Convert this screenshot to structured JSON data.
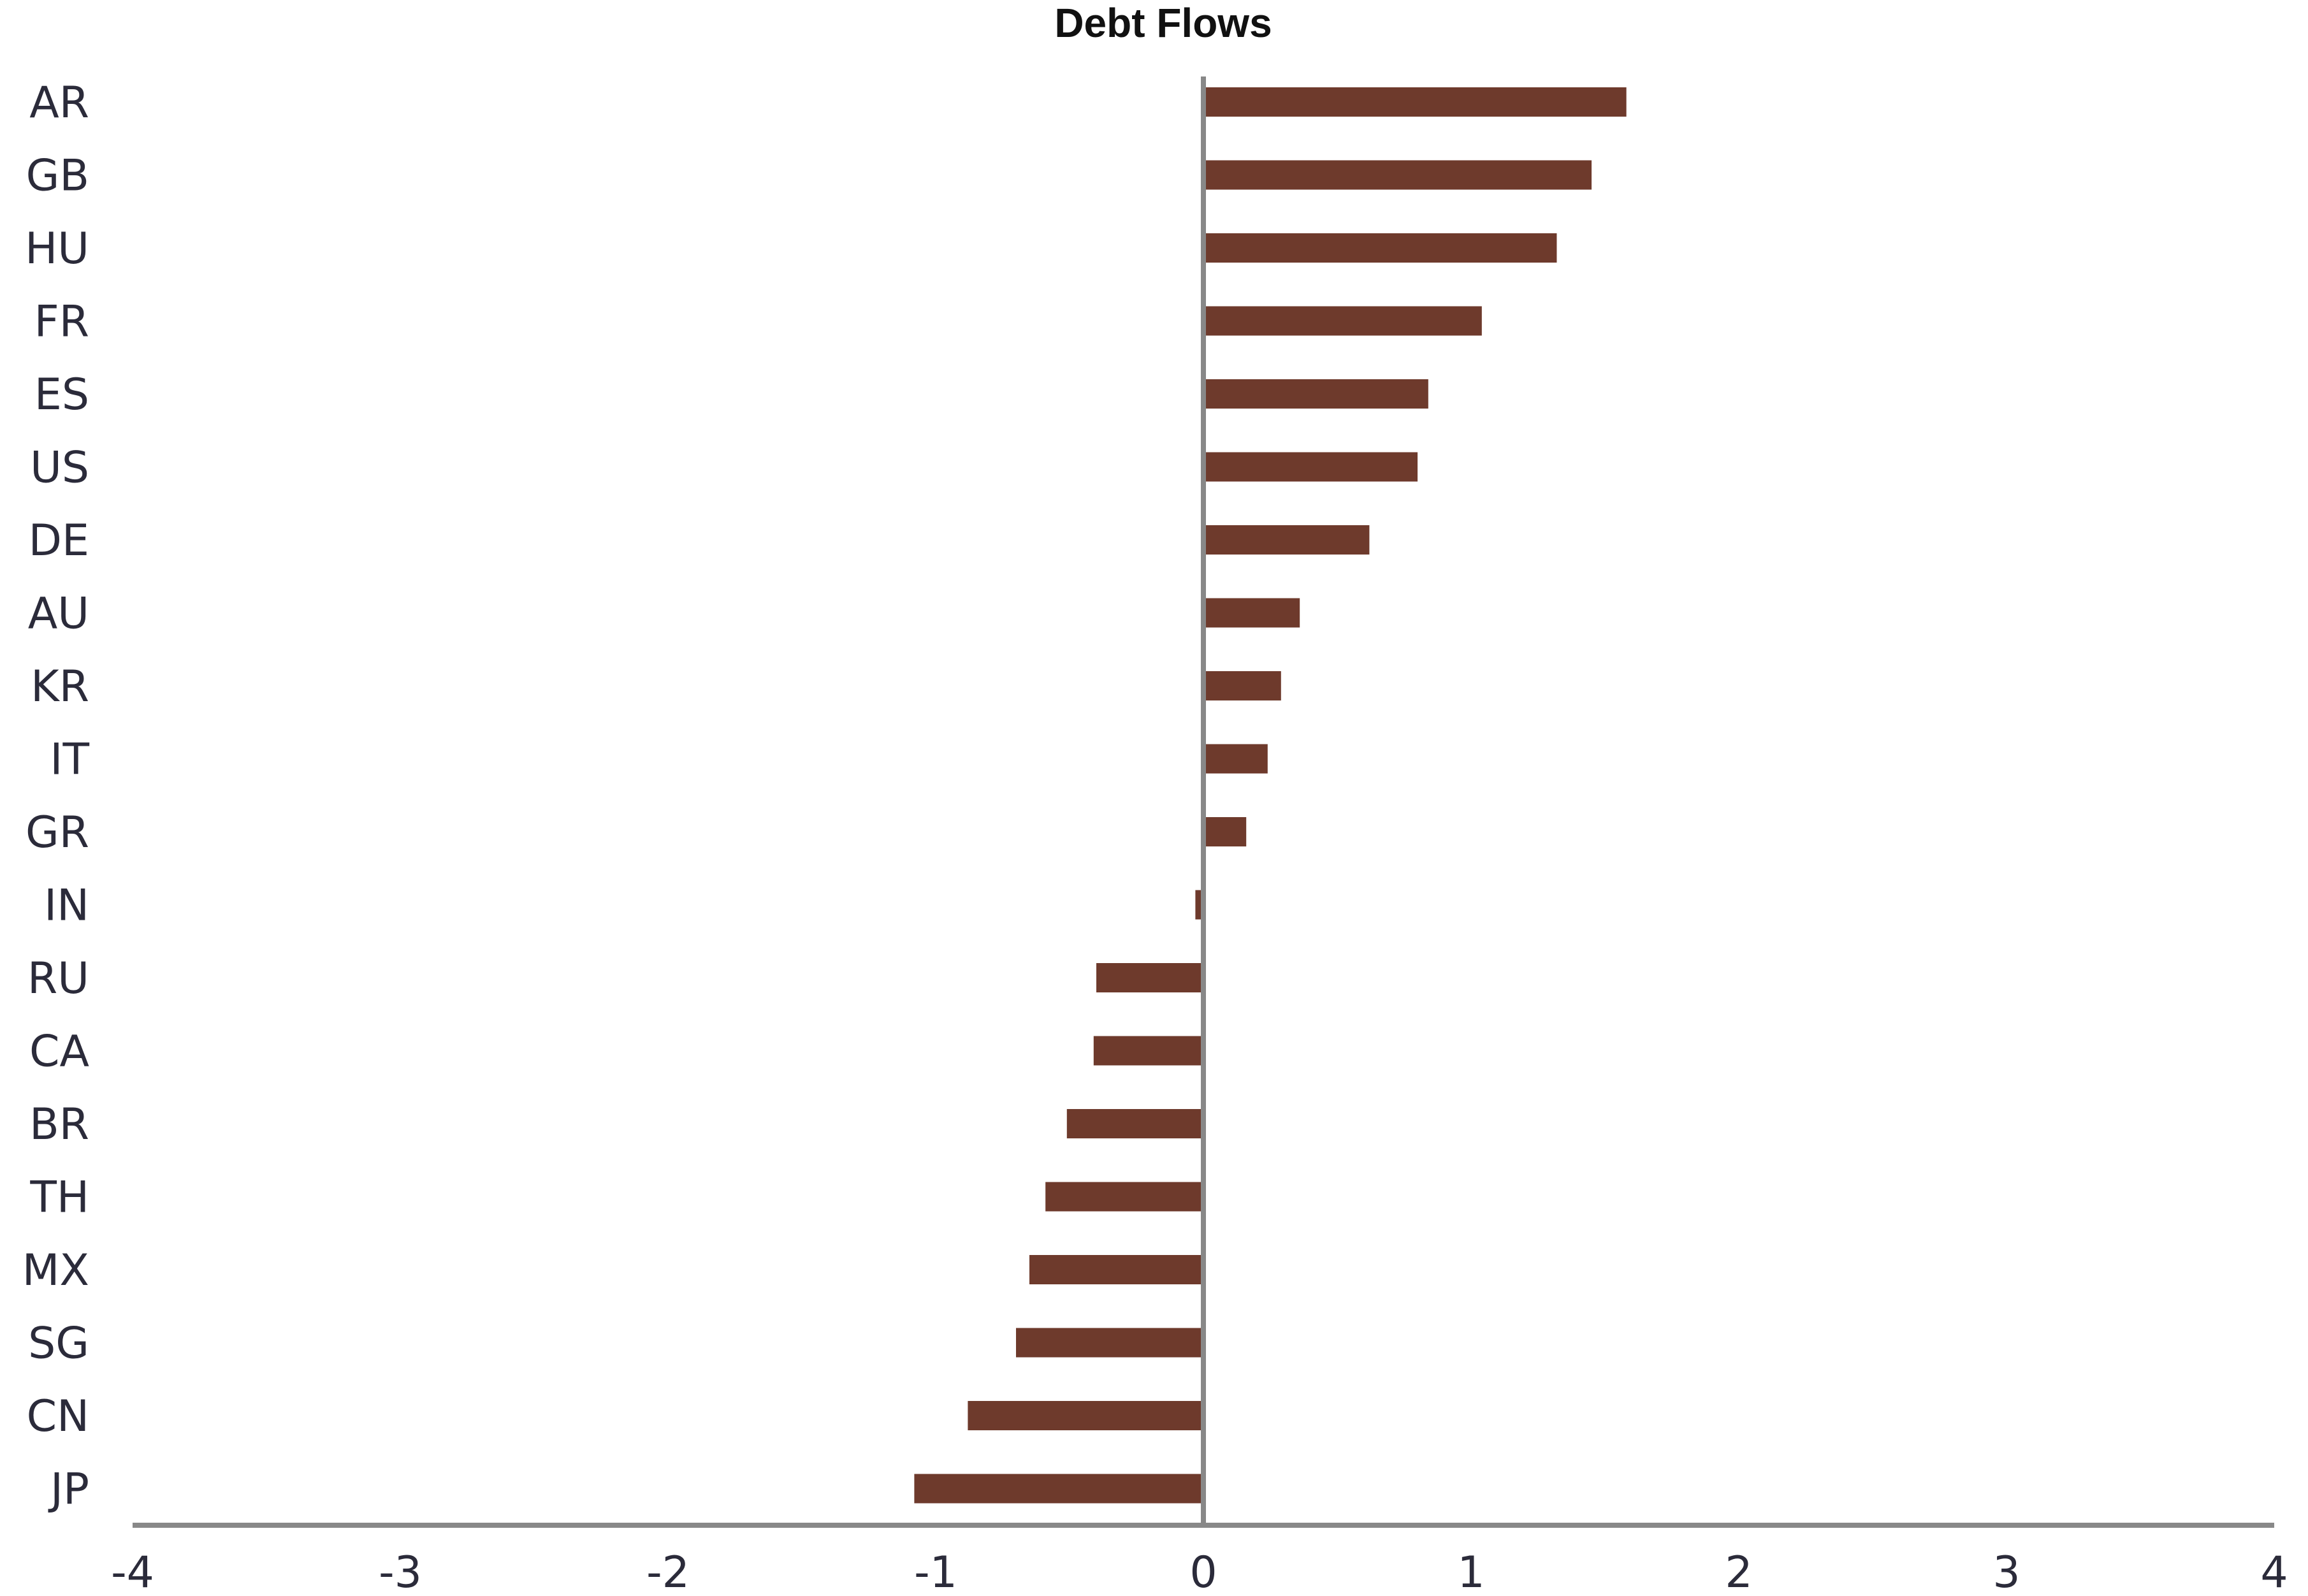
{
  "chart_data": {
    "type": "bar",
    "orientation": "horizontal",
    "title": "Debt Flows",
    "xlabel": "",
    "ylabel": "",
    "xlim": [
      -4,
      4
    ],
    "xticks": [
      "-4",
      "-3",
      "-2",
      "-1",
      "0",
      "1",
      "2",
      "3",
      "4"
    ],
    "grid": false,
    "legend": "none",
    "bar_color": "#6e3a2c",
    "axis_color": "#888888",
    "categories": [
      "AR",
      "GB",
      "HU",
      "FR",
      "ES",
      "US",
      "DE",
      "AU",
      "KR",
      "IT",
      "GR",
      "IN",
      "RU",
      "CA",
      "BR",
      "TH",
      "MX",
      "SG",
      "CN",
      "JP"
    ],
    "values": [
      1.58,
      1.45,
      1.32,
      1.04,
      0.84,
      0.8,
      0.62,
      0.36,
      0.29,
      0.24,
      0.16,
      -0.03,
      -0.4,
      -0.41,
      -0.51,
      -0.59,
      -0.65,
      -0.7,
      -0.88,
      -1.08
    ]
  }
}
